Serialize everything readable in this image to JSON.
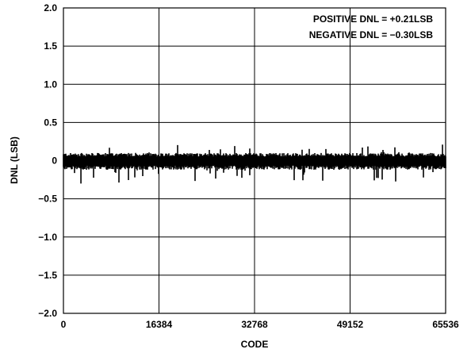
{
  "chart_data": {
    "type": "scatter",
    "title": "",
    "xlabel": "CODE",
    "ylabel": "DNL (LSB)",
    "xlim": [
      0,
      65536
    ],
    "ylim": [
      -2.0,
      2.0
    ],
    "x_ticks": [
      0,
      16384,
      32768,
      49152,
      65536
    ],
    "x_tick_labels": [
      "0",
      "16384",
      "32768",
      "49152",
      "65536"
    ],
    "y_ticks": [
      2.0,
      1.5,
      1.0,
      0.5,
      0,
      -0.5,
      -1.0,
      -1.5,
      -2.0
    ],
    "y_tick_labels": [
      "2.0",
      "1.5",
      "1.0",
      "0.5",
      "0",
      "−0.5",
      "−1.0",
      "−1.5",
      "−2.0"
    ],
    "grid": true,
    "annotations": [
      "POSITIVE DNL = +0.21LSB",
      "NEGATIVE DNL = −0.30LSB"
    ],
    "series": [
      {
        "code_range": [
          0,
          65535
        ],
        "dnl_max": 0.21,
        "dnl_min": -0.3,
        "typical_band": [
          -0.12,
          0.1
        ],
        "color": "#000000"
      }
    ]
  }
}
